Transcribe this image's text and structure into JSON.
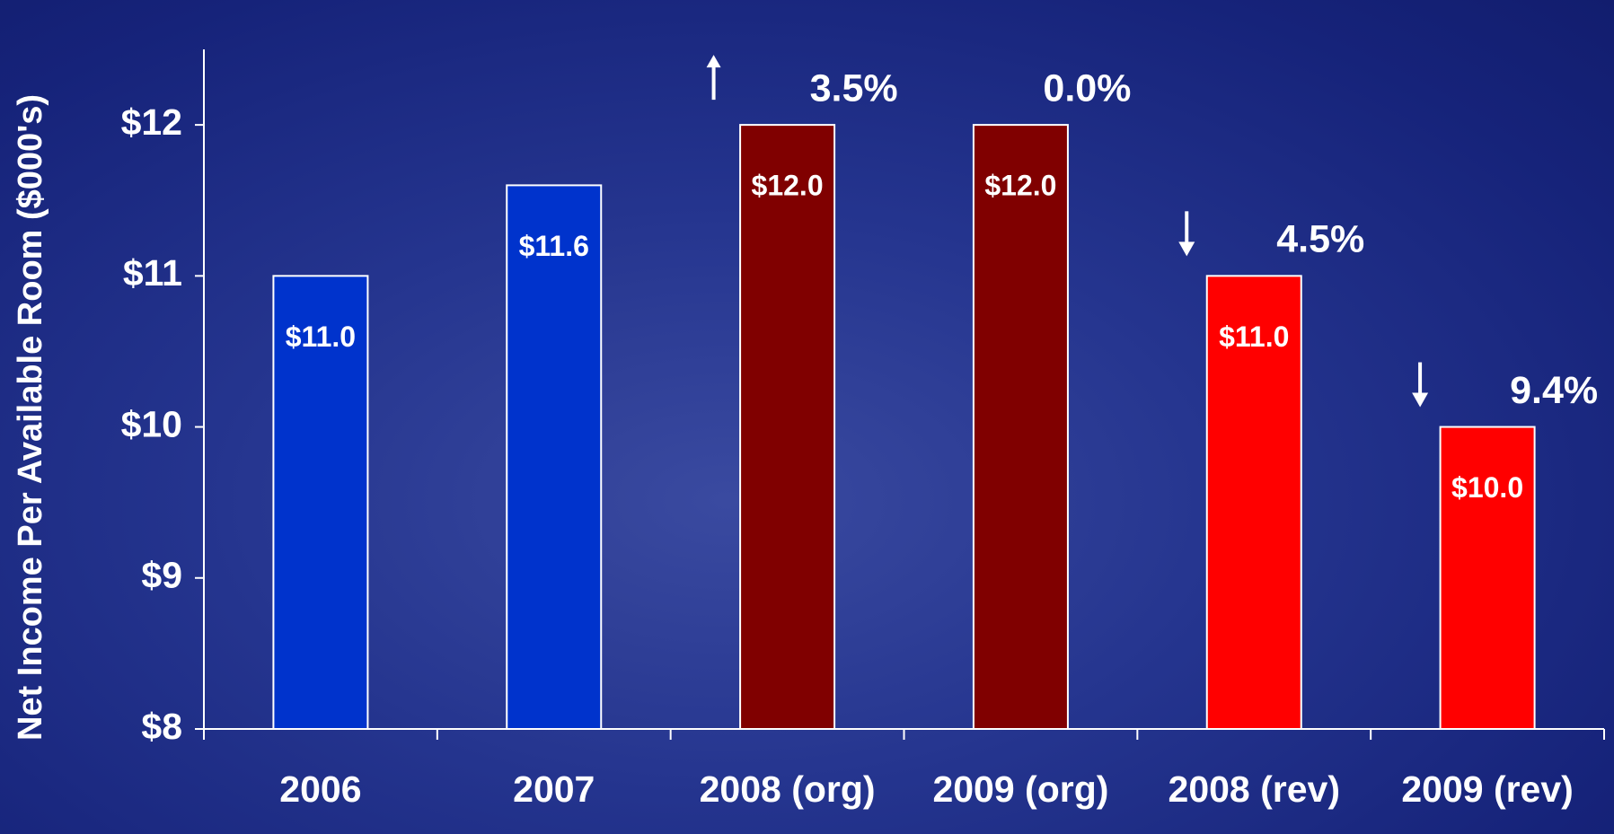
{
  "chart_data": {
    "type": "bar",
    "y_axis_label": "Net Income Per Available Room ($000's)",
    "categories": [
      "2006",
      "2007",
      "2008 (org)",
      "2009 (org)",
      "2008 (rev)",
      "2009 (rev)"
    ],
    "values": [
      11.0,
      11.6,
      12.0,
      12.0,
      11.0,
      10.0
    ],
    "value_labels": [
      "$11.0",
      "$11.6",
      "$12.0",
      "$12.0",
      "$11.0",
      "$10.0"
    ],
    "colors": [
      "#0033cc",
      "#0033cc",
      "#800000",
      "#800000",
      "#ff0000",
      "#ff0000"
    ],
    "changes": [
      null,
      null,
      "3.5%",
      "0.0%",
      "4.5%",
      "9.4%"
    ],
    "change_arrows": [
      null,
      null,
      "up",
      null,
      "down",
      "down"
    ],
    "ylim": [
      8,
      12.5
    ],
    "yticks": [
      {
        "value": 8,
        "label": "$8"
      },
      {
        "value": 9,
        "label": "$9"
      },
      {
        "value": 10,
        "label": "$10"
      },
      {
        "value": 11,
        "label": "$11"
      },
      {
        "value": 12,
        "label": "$12"
      }
    ],
    "grid": false
  }
}
